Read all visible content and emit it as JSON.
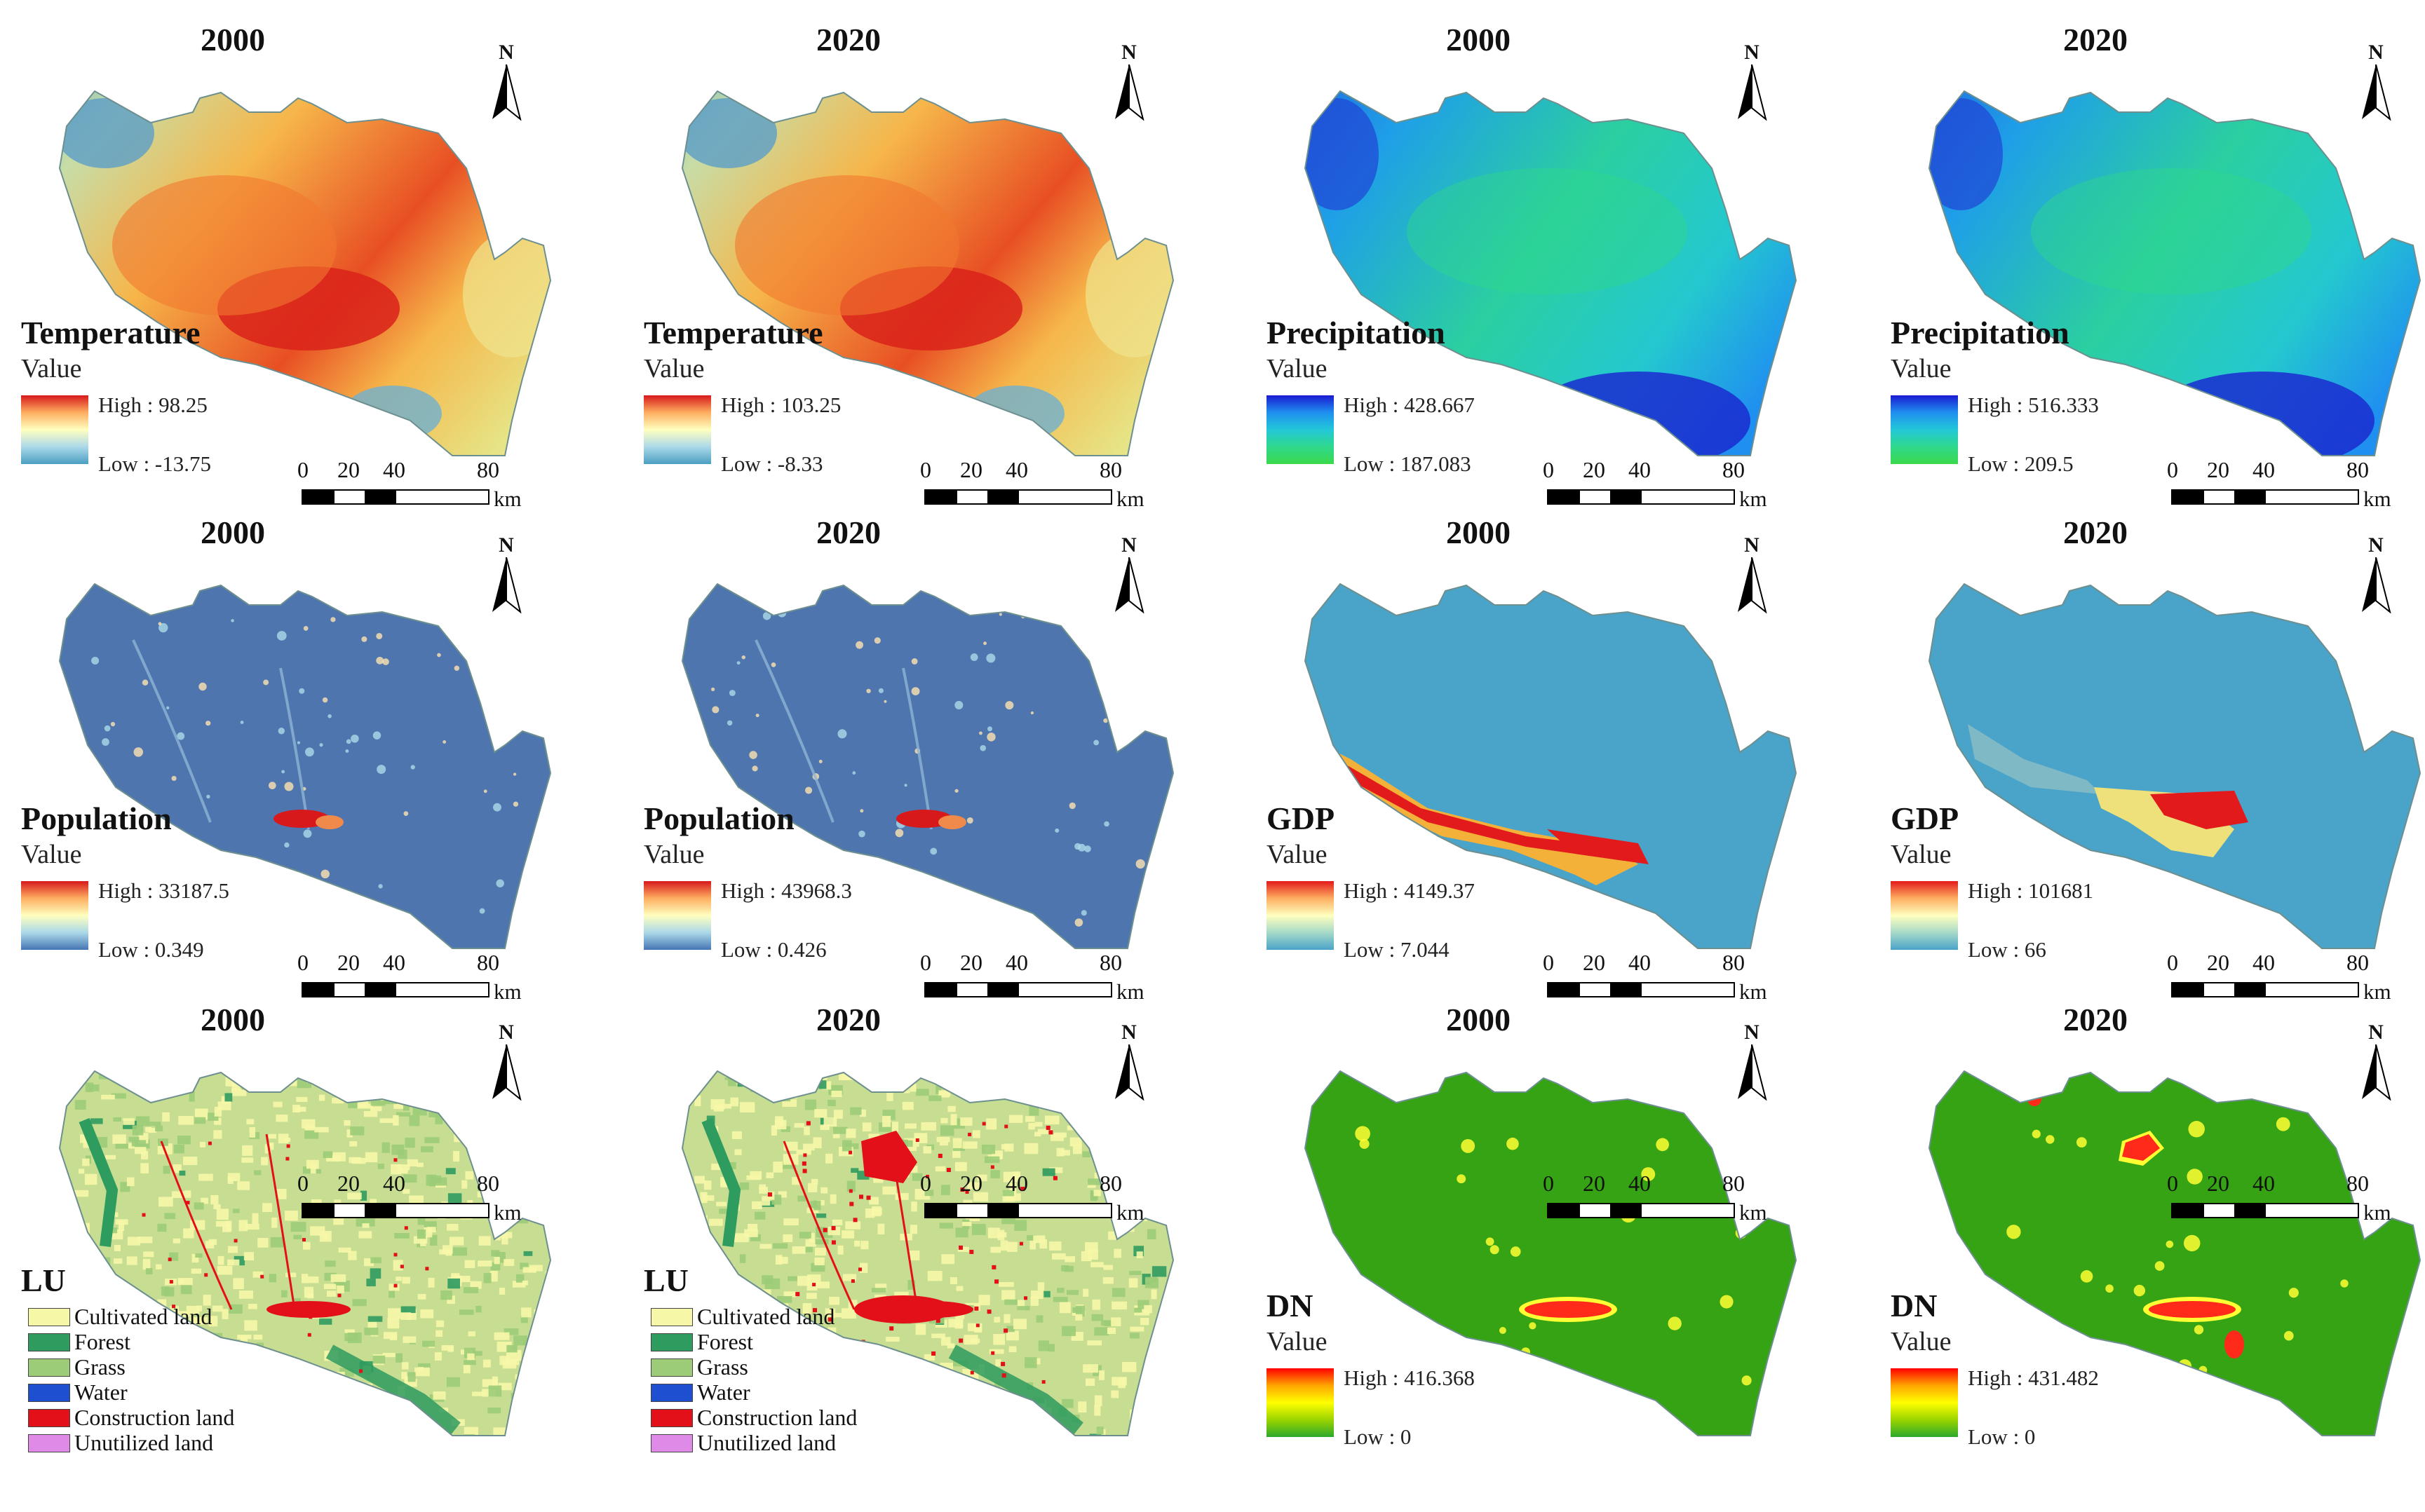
{
  "units": "km",
  "scale_ticks": [
    "0",
    "20",
    "40",
    "80"
  ],
  "north_label": "N",
  "value_label": "Value",
  "panels": [
    {
      "id": "temp2000",
      "year": "2000",
      "title": "Temperature",
      "high": "High : 98.25",
      "low": "Low : -13.75",
      "ramp": [
        "#d7191c",
        "#fdae61",
        "#ffffbf",
        "#abd9e9",
        "#4a9ec2"
      ],
      "fill": "temperature"
    },
    {
      "id": "temp2020",
      "year": "2020",
      "title": "Temperature",
      "high": "High : 103.25",
      "low": "Low : -8.33",
      "ramp": [
        "#d7191c",
        "#fdae61",
        "#ffffbf",
        "#abd9e9",
        "#4a9ec2"
      ],
      "fill": "temperature"
    },
    {
      "id": "prec2000",
      "year": "2000",
      "title": "Precipitation",
      "high": "High : 428.667",
      "low": "Low : 187.083",
      "ramp": [
        "#1a1ad0",
        "#1f8ff0",
        "#22c8d8",
        "#2fd88c",
        "#3ad94a"
      ],
      "fill": "precipitation"
    },
    {
      "id": "prec2020",
      "year": "2020",
      "title": "Precipitation",
      "high": "High : 516.333",
      "low": "Low : 209.5",
      "ramp": [
        "#1a1ad0",
        "#1f8ff0",
        "#22c8d8",
        "#2fd88c",
        "#3ad94a"
      ],
      "fill": "precipitation"
    },
    {
      "id": "pop2000",
      "year": "2000",
      "title": "Population",
      "high": "High : 33187.5",
      "low": "Low : 0.349",
      "ramp": [
        "#d7191c",
        "#fdae61",
        "#ffffbf",
        "#abd9e9",
        "#4575b4"
      ],
      "fill": "population"
    },
    {
      "id": "pop2020",
      "year": "2020",
      "title": "Population",
      "high": "High : 43968.3",
      "low": "Low : 0.426",
      "ramp": [
        "#d7191c",
        "#fdae61",
        "#ffffbf",
        "#abd9e9",
        "#4575b4"
      ],
      "fill": "population"
    },
    {
      "id": "gdp2000",
      "year": "2000",
      "title": "GDP",
      "high": "High : 4149.37",
      "low": "Low : 7.044",
      "ramp": [
        "#e31a1c",
        "#fdae61",
        "#ffffbf",
        "#a6d9c8",
        "#4aa3c8"
      ],
      "fill": "gdp2000"
    },
    {
      "id": "gdp2020",
      "year": "2020",
      "title": "GDP",
      "high": "High : 101681",
      "low": "Low : 66",
      "ramp": [
        "#e31a1c",
        "#fdae61",
        "#ffffbf",
        "#a6d9c8",
        "#4aa3c8"
      ],
      "fill": "gdp2020"
    },
    {
      "id": "lu2000",
      "year": "2000",
      "title": "LU",
      "fill": "lu2000"
    },
    {
      "id": "lu2020",
      "year": "2020",
      "title": "LU",
      "fill": "lu2020"
    },
    {
      "id": "dn2000",
      "year": "2000",
      "title": "DN",
      "high": "High : 416.368",
      "low": "Low : 0",
      "ramp": [
        "#ff0000",
        "#ffa500",
        "#ffff00",
        "#9bd400",
        "#2ca82c"
      ],
      "fill": "dn2000"
    },
    {
      "id": "dn2020",
      "year": "2020",
      "title": "DN",
      "high": "High : 431.482",
      "low": "Low : 0",
      "ramp": [
        "#ff0000",
        "#ffa500",
        "#ffff00",
        "#9bd400",
        "#2ca82c"
      ],
      "fill": "dn2020"
    }
  ],
  "lu_legend": [
    {
      "label": "Cultivated land",
      "color": "#f7f7a8"
    },
    {
      "label": "Forest",
      "color": "#2e9b5f"
    },
    {
      "label": "Grass",
      "color": "#9ccc78"
    },
    {
      "label": "Water",
      "color": "#1f4fd1"
    },
    {
      "label": "Construction land",
      "color": "#e3101a"
    },
    {
      "label": "Unutilized land",
      "color": "#e08ae8"
    }
  ]
}
